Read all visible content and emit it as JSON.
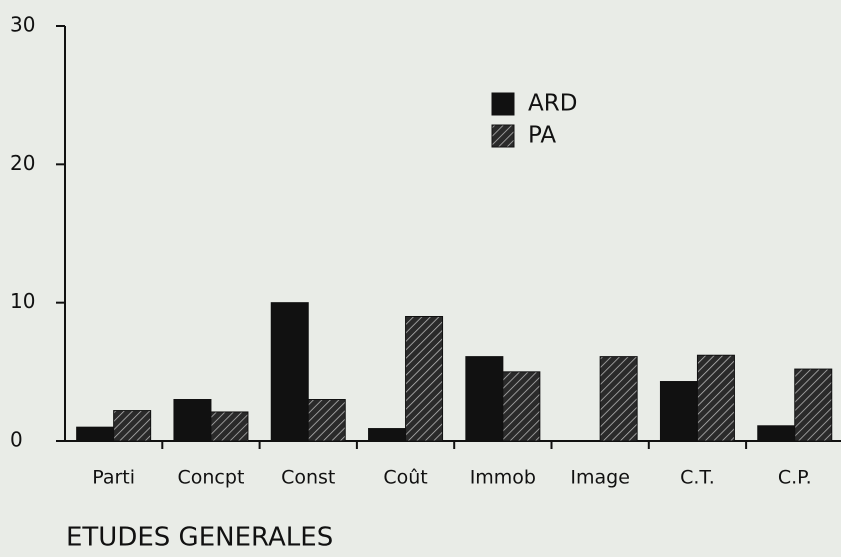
{
  "chart_data": {
    "type": "bar",
    "title": "ETUDES GENERALES",
    "categories": [
      "Parti",
      "Concpt",
      "Const",
      "Coût",
      "Immob",
      "Image",
      "C.T.",
      "C.P."
    ],
    "series": [
      {
        "name": "ARD",
        "color": "#111111",
        "values": [
          1.0,
          3.0,
          10.0,
          0.9,
          6.1,
          0,
          4.3,
          1.1
        ]
      },
      {
        "name": "PA",
        "color": "#222222",
        "hatch": true,
        "values": [
          2.2,
          2.1,
          3.0,
          9.0,
          5.0,
          6.1,
          6.2,
          5.2
        ]
      }
    ],
    "ylim": [
      0,
      30
    ],
    "yticks": [
      0,
      10,
      20,
      30
    ]
  }
}
